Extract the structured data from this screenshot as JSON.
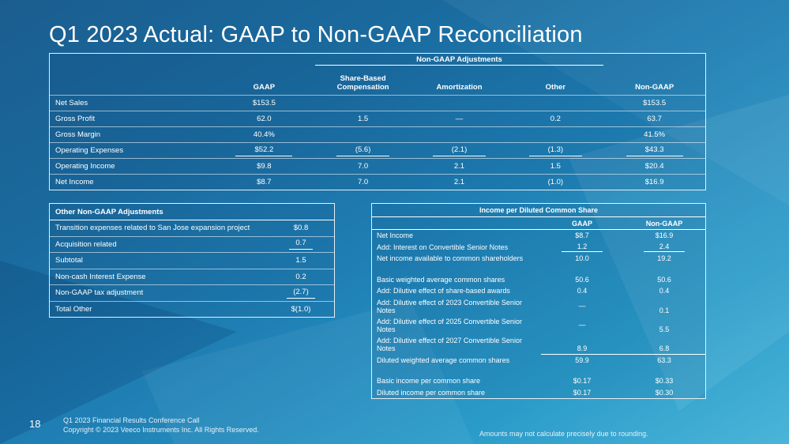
{
  "title": "Q1 2023 Actual: GAAP to Non-GAAP Reconciliation",
  "main_table": {
    "group_header": "Non-GAAP Adjustments",
    "columns": [
      "GAAP",
      "Share-Based Compensation",
      "Amortization",
      "Other",
      "Non-GAAP"
    ],
    "column_lines": [
      [
        "Share-Based",
        "Compensation"
      ]
    ],
    "rows": [
      {
        "label": "Net Sales",
        "gaap": "$153.5",
        "sbc": "",
        "amort": "",
        "other": "",
        "nongaap": "$153.5"
      },
      {
        "label": "Gross Profit",
        "gaap": "62.0",
        "sbc": "1.5",
        "amort": "—",
        "other": "0.2",
        "nongaap": "63.7"
      },
      {
        "label": "Gross Margin",
        "gaap": "40.4%",
        "sbc": "",
        "amort": "",
        "other": "",
        "nongaap": "41.5%"
      },
      {
        "label": "Operating Expenses",
        "gaap": "$52.2",
        "sbc": "(5.6)",
        "amort": "(2.1)",
        "other": "(1.3)",
        "nongaap": "$43.3"
      },
      {
        "label": "Operating Income",
        "gaap": "$9.8",
        "sbc": "7.0",
        "amort": "2.1",
        "other": "1.5",
        "nongaap": "$20.4"
      },
      {
        "label": "Net Income",
        "gaap": "$8.7",
        "sbc": "7.0",
        "amort": "2.1",
        "other": "(1.0)",
        "nongaap": "$16.9"
      }
    ]
  },
  "other_adjustments": {
    "header": "Other Non-GAAP Adjustments",
    "rows": [
      {
        "label": "Transition expenses related to San Jose expansion project",
        "value": "$0.8"
      },
      {
        "label": "Acquisition related",
        "value": "0.7"
      },
      {
        "label": "Subtotal",
        "value": "1.5"
      },
      {
        "label": "Non-cash Interest Expense",
        "value": "0.2"
      },
      {
        "label": "Non-GAAP tax adjustment",
        "value": "(2.7)"
      },
      {
        "label": "Total Other",
        "value": "$(1.0)"
      }
    ]
  },
  "eps_table": {
    "header": "Income per Diluted Common Share",
    "col_gaap": "GAAP",
    "col_nongaap": "Non-GAAP",
    "rows": [
      {
        "label": "Net Income",
        "gaap": "$8.7",
        "nongaap": "$16.9"
      },
      {
        "label": "Add: Interest on Convertible Senior Notes",
        "gaap": "1.2",
        "nongaap": "2.4"
      },
      {
        "label": "Net income available to common shareholders",
        "gaap": "10.0",
        "nongaap": "19.2"
      },
      {
        "label": "Basic weighted average common shares",
        "gaap": "50.6",
        "nongaap": "50.6"
      },
      {
        "label": "Add: Dilutive effect of share-based awards",
        "gaap": "0.4",
        "nongaap": "0.4"
      },
      {
        "label": "Add: Dilutive effect of 2023 Convertible Senior Notes",
        "gaap": "—",
        "nongaap": "0.1"
      },
      {
        "label": "Add: Dilutive effect of 2025 Convertible Senior Notes",
        "gaap": "—",
        "nongaap": "5.5"
      },
      {
        "label": "Add: Dilutive effect of 2027 Convertible Senior Notes",
        "gaap": "8.9",
        "nongaap": "6.8"
      },
      {
        "label": "Diluted weighted average common shares",
        "gaap": "59.9",
        "nongaap": "63.3"
      },
      {
        "label": "Basic income per common share",
        "gaap": "$0.17",
        "nongaap": "$0.33"
      },
      {
        "label": "Diluted income per common share",
        "gaap": "$0.17",
        "nongaap": "$0.30"
      }
    ]
  },
  "footer": {
    "page_number": "18",
    "line1": "Q1 2023 Financial Results Conference Call",
    "line2": "Copyright © 2023 Veeco Instruments Inc. All Rights Reserved.",
    "note": "Amounts may not calculate precisely due to rounding."
  },
  "colors": {
    "accent": "#1f7fb4",
    "text": "#ffffff"
  }
}
